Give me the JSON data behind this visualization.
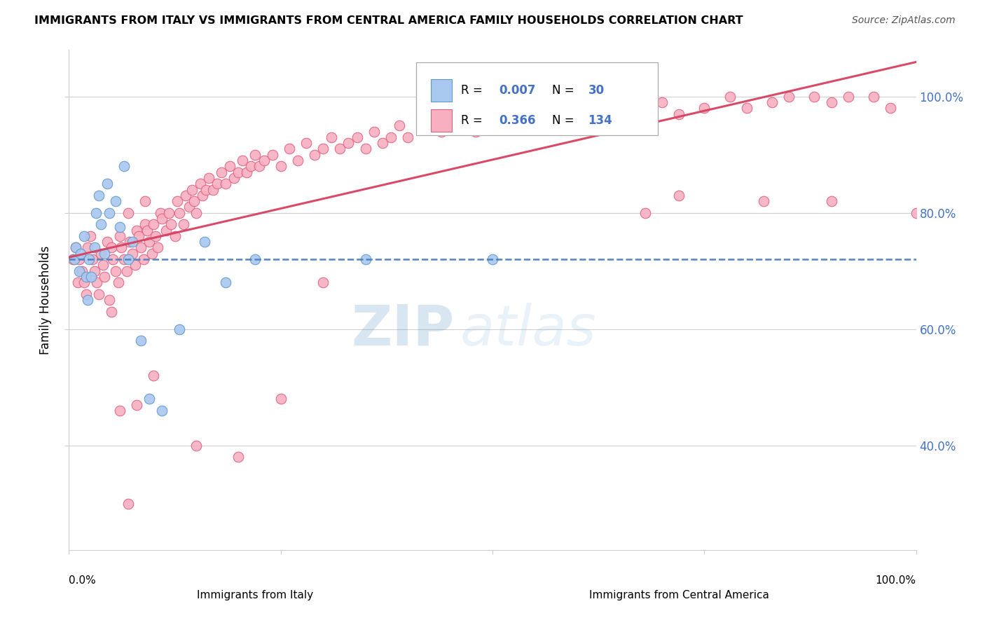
{
  "title": "IMMIGRANTS FROM ITALY VS IMMIGRANTS FROM CENTRAL AMERICA FAMILY HOUSEHOLDS CORRELATION CHART",
  "source": "Source: ZipAtlas.com",
  "ylabel": "Family Households",
  "y_tick_values": [
    0.4,
    0.6,
    0.8,
    1.0
  ],
  "y_tick_labels": [
    "40.0%",
    "60.0%",
    "80.0%",
    "100.0%"
  ],
  "x_range": [
    0.0,
    1.0
  ],
  "y_range": [
    0.22,
    1.08
  ],
  "italy_color": "#a8c8f0",
  "italy_edge_color": "#6098c8",
  "central_america_color": "#f8b0c0",
  "central_america_edge_color": "#e06080",
  "italy_R": 0.007,
  "italy_N": 30,
  "central_america_R": 0.366,
  "central_america_N": 134,
  "bottom_label_italy": "Immigrants from Italy",
  "bottom_label_ca": "Immigrants from Central America",
  "italy_x": [
    0.006,
    0.008,
    0.012,
    0.014,
    0.018,
    0.02,
    0.022,
    0.024,
    0.026,
    0.03,
    0.032,
    0.035,
    0.038,
    0.042,
    0.045,
    0.048,
    0.055,
    0.06,
    0.065,
    0.07,
    0.075,
    0.085,
    0.095,
    0.11,
    0.13,
    0.16,
    0.185,
    0.22,
    0.35,
    0.5
  ],
  "italy_y": [
    0.72,
    0.74,
    0.7,
    0.73,
    0.76,
    0.69,
    0.65,
    0.72,
    0.69,
    0.74,
    0.8,
    0.83,
    0.78,
    0.73,
    0.85,
    0.8,
    0.82,
    0.775,
    0.88,
    0.72,
    0.75,
    0.58,
    0.48,
    0.46,
    0.6,
    0.75,
    0.68,
    0.72,
    0.72,
    0.72
  ],
  "ca_x": [
    0.005,
    0.008,
    0.01,
    0.012,
    0.015,
    0.018,
    0.02,
    0.022,
    0.025,
    0.028,
    0.03,
    0.033,
    0.035,
    0.038,
    0.04,
    0.042,
    0.045,
    0.048,
    0.05,
    0.052,
    0.055,
    0.058,
    0.06,
    0.062,
    0.065,
    0.068,
    0.07,
    0.072,
    0.075,
    0.078,
    0.08,
    0.082,
    0.085,
    0.088,
    0.09,
    0.092,
    0.095,
    0.098,
    0.1,
    0.102,
    0.105,
    0.108,
    0.11,
    0.115,
    0.118,
    0.12,
    0.125,
    0.128,
    0.13,
    0.135,
    0.138,
    0.142,
    0.145,
    0.148,
    0.15,
    0.155,
    0.158,
    0.162,
    0.165,
    0.17,
    0.175,
    0.18,
    0.185,
    0.19,
    0.195,
    0.2,
    0.205,
    0.21,
    0.215,
    0.22,
    0.225,
    0.23,
    0.24,
    0.25,
    0.26,
    0.27,
    0.28,
    0.29,
    0.3,
    0.31,
    0.32,
    0.33,
    0.34,
    0.35,
    0.36,
    0.37,
    0.38,
    0.39,
    0.4,
    0.42,
    0.44,
    0.46,
    0.48,
    0.5,
    0.52,
    0.54,
    0.56,
    0.58,
    0.6,
    0.63,
    0.65,
    0.67,
    0.7,
    0.72,
    0.75,
    0.78,
    0.8,
    0.83,
    0.85,
    0.88,
    0.9,
    0.92,
    0.95,
    0.97,
    1.0,
    0.48,
    0.52,
    0.56,
    0.6,
    0.65,
    0.68,
    0.72,
    0.82,
    0.9,
    0.1,
    0.15,
    0.2,
    0.25,
    0.3,
    0.05,
    0.06,
    0.07,
    0.08,
    0.09
  ],
  "ca_y": [
    0.72,
    0.74,
    0.68,
    0.72,
    0.7,
    0.68,
    0.66,
    0.74,
    0.76,
    0.72,
    0.7,
    0.68,
    0.66,
    0.73,
    0.71,
    0.69,
    0.75,
    0.65,
    0.74,
    0.72,
    0.7,
    0.68,
    0.76,
    0.74,
    0.72,
    0.7,
    0.8,
    0.75,
    0.73,
    0.71,
    0.77,
    0.76,
    0.74,
    0.72,
    0.78,
    0.77,
    0.75,
    0.73,
    0.78,
    0.76,
    0.74,
    0.8,
    0.79,
    0.77,
    0.8,
    0.78,
    0.76,
    0.82,
    0.8,
    0.78,
    0.83,
    0.81,
    0.84,
    0.82,
    0.8,
    0.85,
    0.83,
    0.84,
    0.86,
    0.84,
    0.85,
    0.87,
    0.85,
    0.88,
    0.86,
    0.87,
    0.89,
    0.87,
    0.88,
    0.9,
    0.88,
    0.89,
    0.9,
    0.88,
    0.91,
    0.89,
    0.92,
    0.9,
    0.91,
    0.93,
    0.91,
    0.92,
    0.93,
    0.91,
    0.94,
    0.92,
    0.93,
    0.95,
    0.93,
    0.95,
    0.94,
    0.96,
    0.94,
    0.95,
    0.97,
    0.95,
    0.96,
    0.97,
    0.96,
    0.98,
    0.97,
    0.96,
    0.99,
    0.97,
    0.98,
    1.0,
    0.98,
    0.99,
    1.0,
    1.0,
    0.99,
    1.0,
    1.0,
    0.98,
    0.8,
    1.0,
    1.0,
    1.0,
    1.0,
    0.96,
    0.8,
    0.83,
    0.82,
    0.82,
    0.52,
    0.4,
    0.38,
    0.48,
    0.68,
    0.63,
    0.46,
    0.3,
    0.47,
    0.82
  ]
}
